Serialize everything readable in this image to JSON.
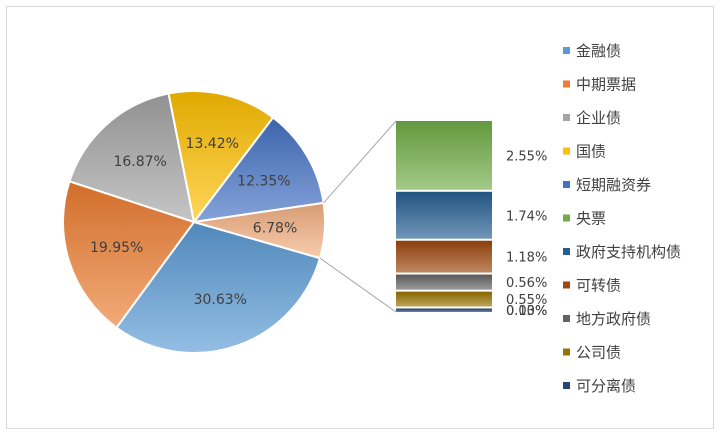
{
  "chart_data": {
    "type": "pie",
    "title": "",
    "series": [
      {
        "name": "金融债",
        "value": 30.63,
        "color": "#5b9bd5",
        "label": "30.63%"
      },
      {
        "name": "中期票据",
        "value": 19.95,
        "color": "#ed7d31",
        "label": "19.95%"
      },
      {
        "name": "企业债",
        "value": 16.87,
        "color": "#a5a5a5",
        "label": "16.87%"
      },
      {
        "name": "国债",
        "value": 13.42,
        "color": "#ffc000",
        "label": "13.42%"
      },
      {
        "name": "短期融资券",
        "value": 12.35,
        "color": "#4472c4",
        "label": "12.35%"
      },
      {
        "name": "央票",
        "value": 2.55,
        "color": "#70ad47",
        "label": "2.55%"
      },
      {
        "name": "政府支持机构债",
        "value": 1.74,
        "color": "#255e91",
        "label": "1.74%"
      },
      {
        "name": "可转债",
        "value": 1.18,
        "color": "#9e480e",
        "label": "1.18%"
      },
      {
        "name": "地方政府债",
        "value": 0.56,
        "color": "#636363",
        "label": "0.56%"
      },
      {
        "name": "公司债",
        "value": 0.55,
        "color": "#997300",
        "label": "0.55%"
      },
      {
        "name": "可分离债",
        "value": 0.13,
        "color": "#264478",
        "label": "0.13%"
      }
    ],
    "other_group": {
      "value": 6.78,
      "color": "#f4b183",
      "label": "6.78%"
    },
    "extra_labels": [
      "0.00%"
    ],
    "legend_position": "right"
  }
}
